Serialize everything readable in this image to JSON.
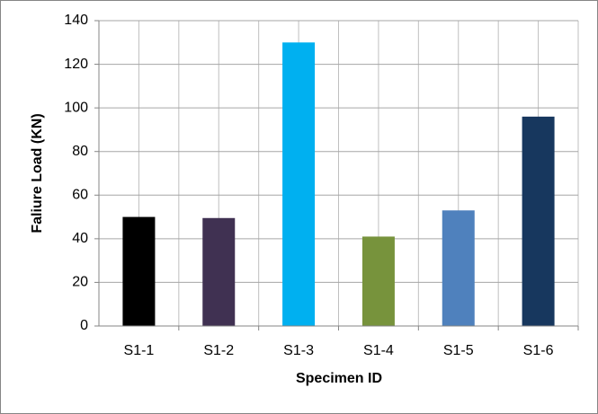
{
  "chart_data": {
    "type": "bar",
    "x_label": "Specimen ID",
    "y_label": "Faliure Load (KN)",
    "categories": [
      "S1-1",
      "S1-2",
      "S1-3",
      "S1-4",
      "S1-5",
      "S1-6"
    ],
    "values": [
      50,
      49.5,
      130,
      41,
      53,
      96
    ],
    "colors": [
      "#000000",
      "#403152",
      "#00b0f0",
      "#77933c",
      "#4f81bd",
      "#17375e"
    ],
    "ylim": [
      0,
      140
    ],
    "yticks": [
      0,
      20,
      40,
      60,
      80,
      100,
      120,
      140
    ],
    "grid": true
  }
}
